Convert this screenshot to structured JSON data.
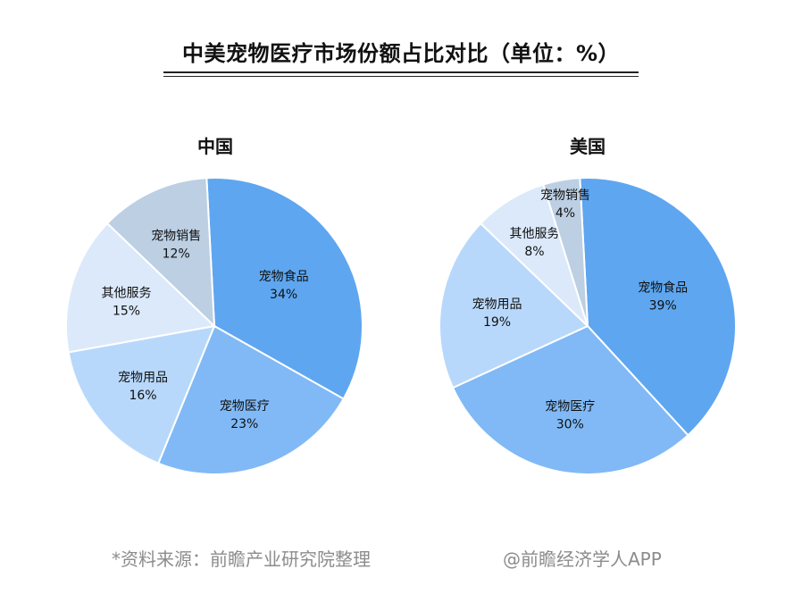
{
  "title": "中美宠物医疗市场份额占比对比（单位：%）",
  "colors": [
    "#5ea6f0",
    "#80b9f6",
    "#b8d8fb",
    "#dbe9fb",
    "#bccfe3"
  ],
  "chart_data": [
    {
      "type": "pie",
      "title": "中国",
      "slices": [
        {
          "label": "宠物食品",
          "value": 34,
          "value_label": "34%"
        },
        {
          "label": "宠物医疗",
          "value": 23,
          "value_label": "23%"
        },
        {
          "label": "宠物用品",
          "value": 16,
          "value_label": "16%"
        },
        {
          "label": "其他服务",
          "value": 15,
          "value_label": "15%"
        },
        {
          "label": "宠物销售",
          "value": 12,
          "value_label": "12%"
        }
      ]
    },
    {
      "type": "pie",
      "title": "美国",
      "slices": [
        {
          "label": "宠物食品",
          "value": 39,
          "value_label": "39%"
        },
        {
          "label": "宠物医疗",
          "value": 30,
          "value_label": "30%"
        },
        {
          "label": "宠物用品",
          "value": 19,
          "value_label": "19%"
        },
        {
          "label": "其他服务",
          "value": 8,
          "value_label": "8%"
        },
        {
          "label": "宠物销售",
          "value": 4,
          "value_label": "4%"
        }
      ]
    }
  ],
  "footer": {
    "source": "*资料来源：前瞻产业研究院整理",
    "credit": "@前瞻经济学人APP"
  }
}
